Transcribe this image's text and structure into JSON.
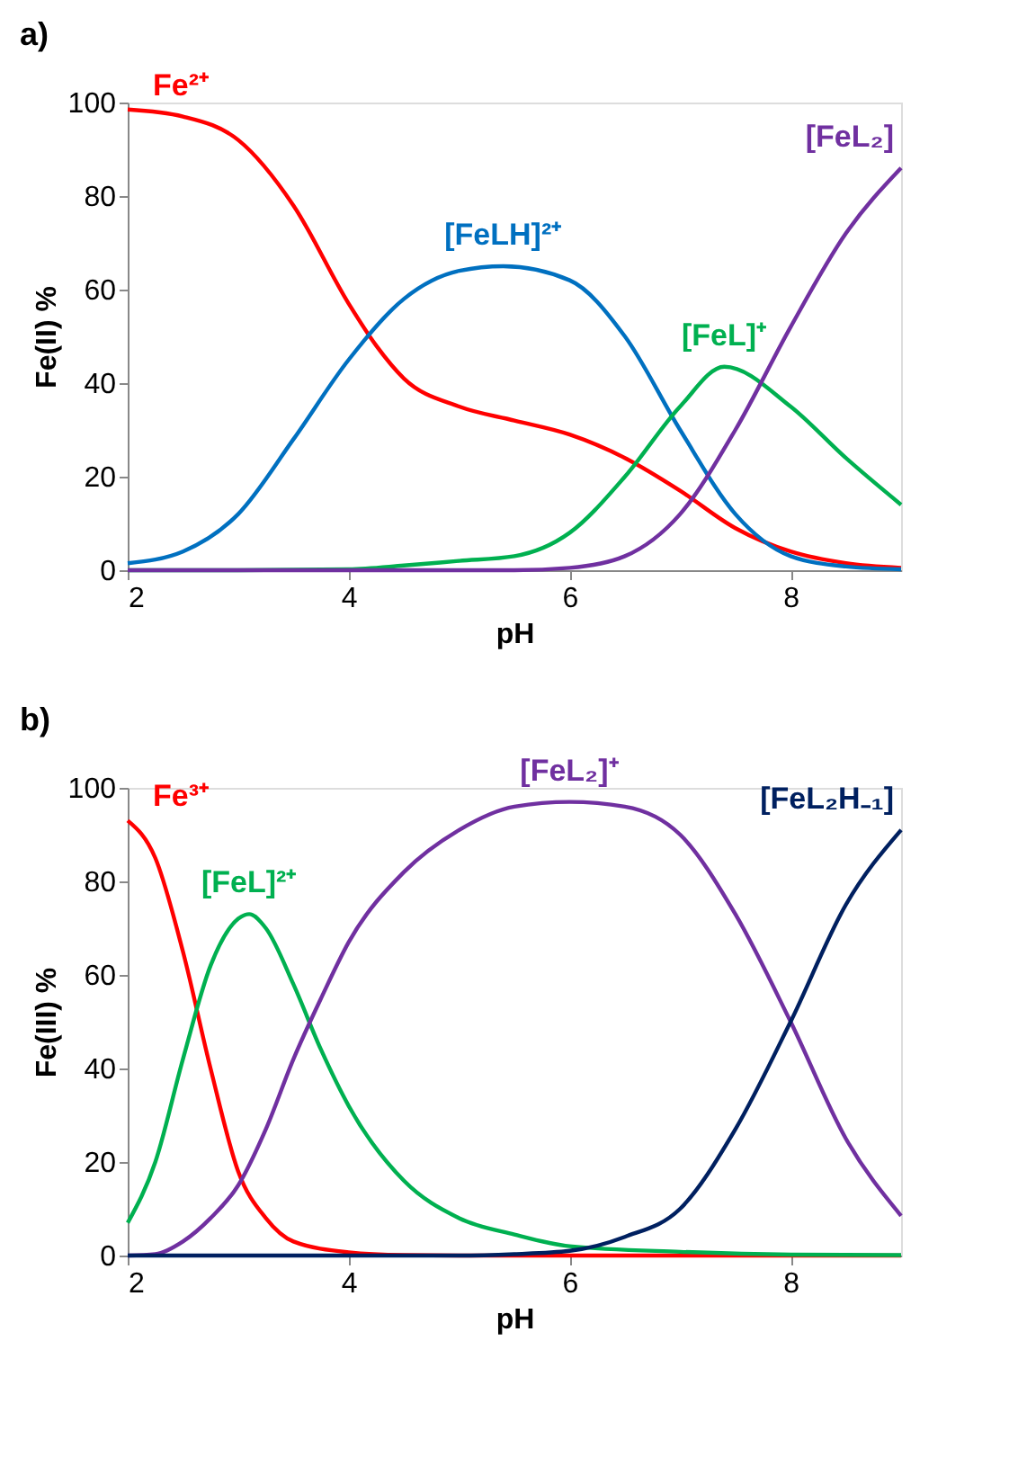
{
  "chart_data": [
    {
      "type": "line",
      "title": "a)",
      "xlabel": "pH",
      "ylabel": "Fe(II) %",
      "xlim": [
        2,
        9
      ],
      "xticks": [
        2,
        4,
        6,
        8
      ],
      "ylim": [
        0,
        100
      ],
      "yticks": [
        0,
        20,
        40,
        60,
        80,
        100
      ],
      "grid": false,
      "legend": false,
      "marker": "none",
      "line_style": "solid",
      "series": [
        {
          "name": "Fe²⁺",
          "color": "#ff0000",
          "x": [
            2,
            2.5,
            3,
            3.5,
            4,
            4.25,
            4.5,
            5,
            5.5,
            6,
            6.5,
            7,
            7.5,
            8,
            8.5,
            9
          ],
          "values": [
            98.5,
            97,
            92,
            78,
            57,
            48,
            41,
            35,
            32,
            29,
            24,
            17,
            9,
            4,
            1.5,
            0.5
          ]
        },
        {
          "name": "[FeLH]²⁺",
          "color": "#0070c0",
          "x": [
            2,
            2.5,
            3,
            3.5,
            4,
            4.5,
            5,
            5.4,
            6,
            6.5,
            7,
            7.5,
            8,
            8.5,
            9
          ],
          "values": [
            1.5,
            4,
            12,
            28,
            45,
            58,
            64,
            65,
            62,
            50,
            30,
            12,
            3,
            0.8,
            0.2
          ]
        },
        {
          "name": "[FeL]⁺",
          "color": "#00b050",
          "x": [
            2,
            3,
            4,
            4.5,
            5,
            5.5,
            6,
            6.5,
            7,
            7.4,
            8,
            8.5,
            9
          ],
          "values": [
            0,
            0,
            0.2,
            1,
            2,
            3,
            8,
            20,
            35,
            43.5,
            35,
            24,
            14
          ]
        },
        {
          "name": "[FeL₂]",
          "color": "#7030a0",
          "x": [
            2,
            4,
            5.5,
            6,
            6.5,
            7,
            7.5,
            8,
            8.5,
            9
          ],
          "values": [
            0,
            0,
            0,
            0.5,
            3,
            12,
            30,
            52,
            72,
            86
          ]
        }
      ]
    },
    {
      "type": "line",
      "title": "b)",
      "xlabel": "pH",
      "ylabel": "Fe(III) %",
      "xlim": [
        2,
        9
      ],
      "xticks": [
        2,
        4,
        6,
        8
      ],
      "ylim": [
        0,
        100
      ],
      "yticks": [
        0,
        20,
        40,
        60,
        80,
        100
      ],
      "grid": false,
      "legend": false,
      "marker": "none",
      "line_style": "solid",
      "series": [
        {
          "name": "Fe³⁺",
          "color": "#ff0000",
          "x": [
            2,
            2.25,
            2.5,
            2.75,
            3,
            3.25,
            3.5,
            4,
            4.5,
            5,
            9
          ],
          "values": [
            93,
            85,
            65,
            40,
            18,
            8,
            3,
            0.7,
            0.1,
            0,
            0
          ]
        },
        {
          "name": "[FeL]²⁺",
          "color": "#00b050",
          "x": [
            2,
            2.25,
            2.5,
            2.75,
            3,
            3.1,
            3.25,
            3.5,
            3.75,
            4,
            4.5,
            5,
            5.5,
            6,
            7,
            8,
            9
          ],
          "values": [
            7,
            20,
            42,
            62,
            72,
            73,
            70,
            58,
            44,
            32,
            16,
            8,
            4.5,
            2,
            0.8,
            0.2,
            0.1
          ]
        },
        {
          "name": "[FeL₂]⁺",
          "color": "#7030a0",
          "x": [
            2,
            2.25,
            2.5,
            2.75,
            3,
            3.25,
            3.5,
            3.75,
            4,
            4.5,
            5,
            5.5,
            6,
            6.5,
            7,
            7.5,
            8,
            8.5,
            9
          ],
          "values": [
            0,
            0.3,
            3,
            8,
            15,
            27,
            42,
            55,
            67,
            82,
            91,
            96,
            97,
            96,
            90,
            73,
            50,
            25,
            8.5
          ]
        },
        {
          "name": "[FeL₂H₋₁]",
          "color": "#002060",
          "x": [
            2,
            5,
            5.5,
            6,
            6.5,
            7,
            7.5,
            8,
            8.5,
            9
          ],
          "values": [
            0,
            0,
            0.3,
            1,
            4,
            10,
            27,
            50,
            75,
            91
          ]
        }
      ]
    }
  ]
}
